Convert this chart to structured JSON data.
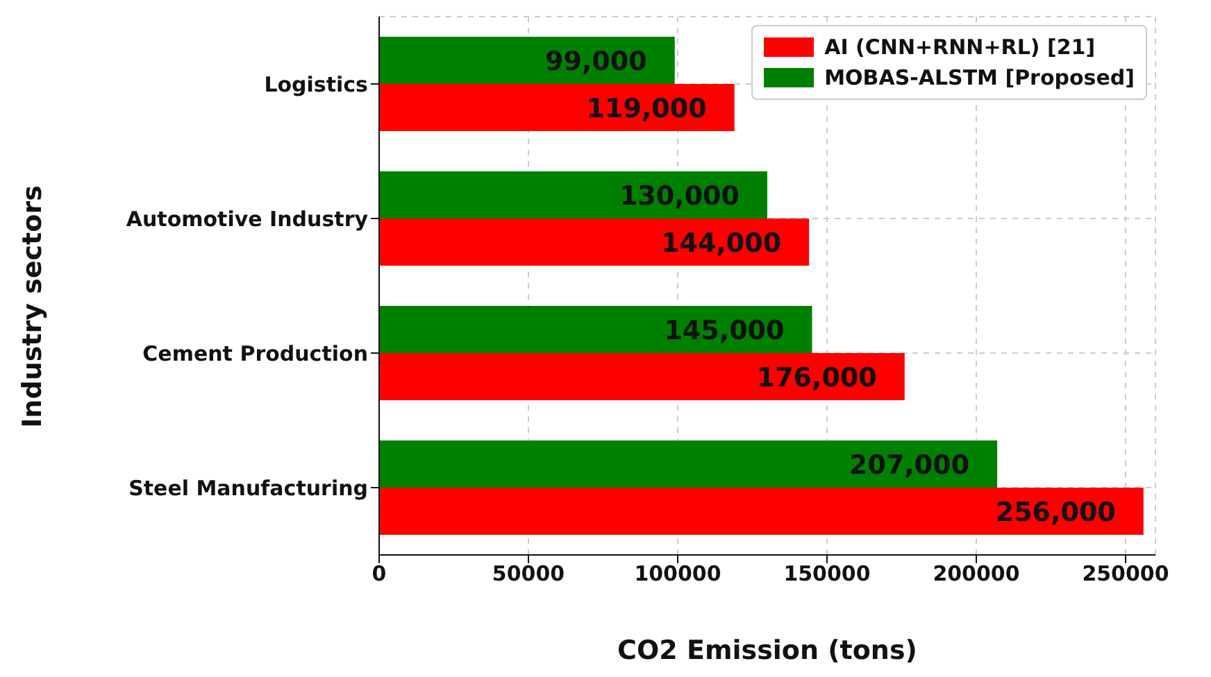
{
  "chart_data": {
    "type": "bar",
    "orientation": "horizontal",
    "xlabel": "CO2 Emission (tons)",
    "ylabel": "Industry sectors",
    "categories": [
      "Logistics",
      "Automotive Industry",
      "Cement Production",
      "Steel Manufacturing"
    ],
    "series": [
      {
        "name": "AI (CNN+RNN+RL) [21]",
        "color": "#ff0000",
        "values": [
          119000,
          144000,
          176000,
          256000
        ],
        "value_labels": [
          "119,000",
          "144,000",
          "176,000",
          "256,000"
        ]
      },
      {
        "name": "MOBAS-ALSTM [Proposed]",
        "color": "#008000",
        "values": [
          99000,
          130000,
          145000,
          207000
        ],
        "value_labels": [
          "99,000",
          "130,000",
          "145,000",
          "207,000"
        ]
      }
    ],
    "xlim": [
      0,
      260000
    ],
    "xticks": [
      0,
      50000,
      100000,
      150000,
      200000,
      250000
    ],
    "grid": true,
    "legend": "top right"
  }
}
